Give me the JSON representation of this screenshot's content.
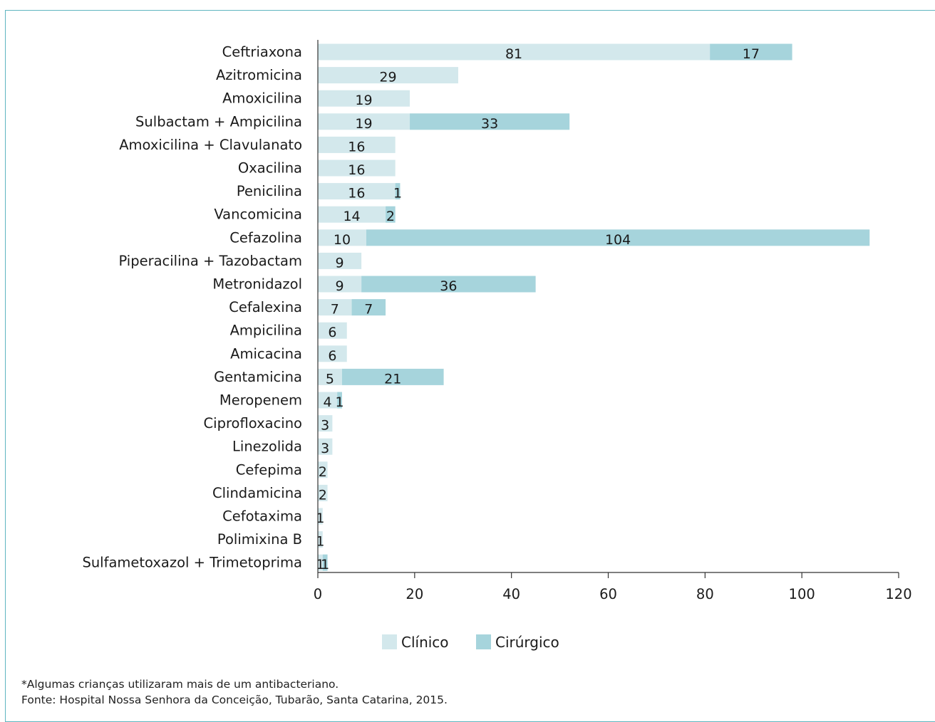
{
  "chart_data": {
    "type": "bar",
    "orientation": "horizontal",
    "stacked": true,
    "categories": [
      "Ceftriaxona",
      "Azitromicina",
      "Amoxicilina",
      "Sulbactam + Ampicilina",
      "Amoxicilina + Clavulanato",
      "Oxacilina",
      "Penicilina",
      "Vancomicina",
      "Cefazolina",
      "Piperacilina + Tazobactam",
      "Metronidazol",
      "Cefalexina",
      "Ampicilina",
      "Amicacina",
      "Gentamicina",
      "Meropenem",
      "Ciprofloxacino",
      "Linezolida",
      "Cefepima",
      "Clindamicina",
      "Cefotaxima",
      "Polimixina B",
      "Sulfametoxazol + Trimetoprima"
    ],
    "series": [
      {
        "name": "Clínico",
        "color": "#d3e8ec",
        "values": [
          81,
          29,
          19,
          19,
          16,
          16,
          16,
          14,
          10,
          9,
          9,
          7,
          6,
          6,
          5,
          4,
          3,
          3,
          2,
          2,
          1,
          1,
          1
        ],
        "labels": [
          "81",
          "29",
          "19",
          "19",
          "16",
          "16",
          "16",
          "14",
          "10",
          "9",
          "9",
          "7",
          "6",
          "6",
          "5",
          "4",
          "3",
          "3",
          "2",
          "2",
          "1",
          "1",
          "1"
        ]
      },
      {
        "name": "Cirúrgico",
        "color": "#a6d4dc",
        "values": [
          17,
          0,
          0,
          33,
          0,
          0,
          1,
          2,
          104,
          0,
          36,
          7,
          0,
          0,
          21,
          1,
          0,
          0,
          0,
          0,
          0,
          0,
          1
        ],
        "labels": [
          "17",
          "",
          "",
          "33",
          "",
          "",
          "1",
          "2",
          "104",
          "",
          "36",
          "7",
          "",
          "",
          "21",
          "1",
          "",
          "",
          "",
          "",
          "",
          "",
          "1"
        ]
      }
    ],
    "xlim": [
      0,
      120
    ],
    "xticks": [
      "0",
      "20",
      "40",
      "60",
      "80",
      "100",
      "120"
    ],
    "grid": false,
    "legend_position": "bottom"
  },
  "notes": {
    "line1": "*Algumas crianças utilizaram mais de um antibacteriano.",
    "line2": "Fonte: Hospital Nossa Senhora da Conceição, Tubarão, Santa Catarina, 2015."
  }
}
